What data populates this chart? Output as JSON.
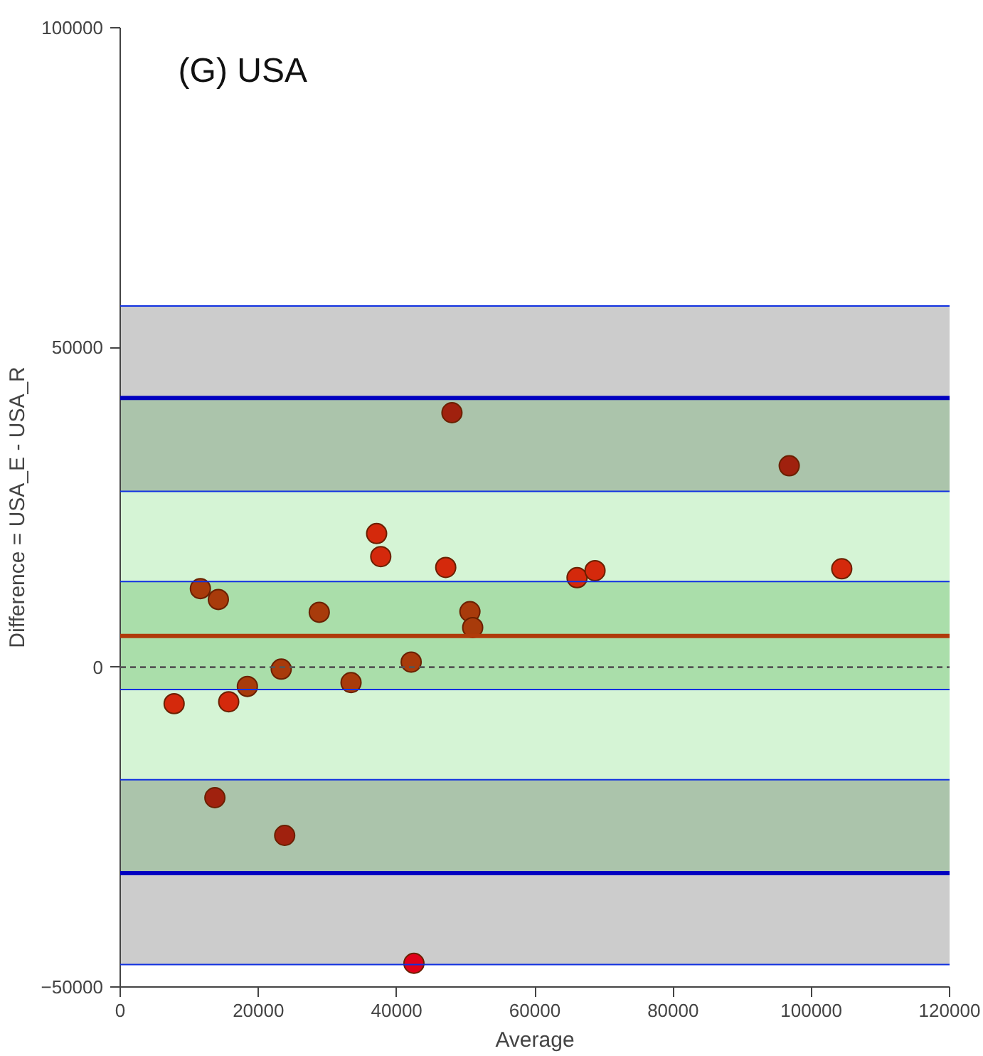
{
  "chart_data": {
    "type": "scatter",
    "title": "(G) USA",
    "xlabel": "Average",
    "ylabel": "Difference = USA_E - USA_R",
    "xlim": [
      0,
      120000
    ],
    "xticks": [
      0,
      20000,
      40000,
      60000,
      80000,
      100000,
      120000
    ],
    "ylim": [
      -50000,
      100000
    ],
    "yticks": [
      -50000,
      0,
      50000,
      100000
    ],
    "grid": false,
    "marker": "circle",
    "x": [
      48000,
      96800,
      37100,
      37700,
      47100,
      66100,
      68700,
      104400,
      11600,
      14200,
      28800,
      50600,
      51000,
      23300,
      42100,
      7800,
      15700,
      18400,
      33400,
      13700,
      23800,
      42500
    ],
    "values": [
      39800,
      31500,
      20900,
      17300,
      15600,
      14000,
      15100,
      15400,
      12300,
      10600,
      8600,
      8700,
      6200,
      -300,
      800,
      -5700,
      -5400,
      -3000,
      -2400,
      -20400,
      -26300,
      -46300
    ],
    "colors": [
      "#a0210e",
      "#a0210e",
      "#d4290c",
      "#d4290c",
      "#d4290c",
      "#d4290c",
      "#d4290c",
      "#d4290c",
      "#a83b0b",
      "#a83b0b",
      "#a83b0b",
      "#a83b0b",
      "#a83b0b",
      "#a83b0b",
      "#a83b0b",
      "#d4290c",
      "#d4290c",
      "#a83b0b",
      "#a83b0b",
      "#a0210e",
      "#a0210e",
      "#e0001a"
    ],
    "bands": [
      {
        "axis": "y",
        "from": 42100,
        "to": 56500,
        "color": "#cccccc"
      },
      {
        "axis": "y",
        "from": 27500,
        "to": 42100,
        "color": "#abc4ab"
      },
      {
        "axis": "y",
        "from": 13400,
        "to": 27500,
        "color": "#d5f4d5"
      },
      {
        "axis": "y",
        "from": -3500,
        "to": 13400,
        "color": "#aadeaa"
      },
      {
        "axis": "y",
        "from": -17600,
        "to": -3500,
        "color": "#d5f4d5"
      },
      {
        "axis": "y",
        "from": -32200,
        "to": -17600,
        "color": "#abc4ab"
      },
      {
        "axis": "y",
        "from": -46500,
        "to": -32200,
        "color": "#cccccc"
      }
    ],
    "ref_lines": [
      {
        "axis": "y",
        "value": 56500,
        "color": "#1030e0"
      },
      {
        "axis": "y",
        "value": 27500,
        "color": "#1030e0"
      },
      {
        "axis": "y",
        "value": 13400,
        "color": "#1030e0"
      },
      {
        "axis": "y",
        "value": -3500,
        "color": "#1030e0"
      },
      {
        "axis": "y",
        "value": -17600,
        "color": "#1030e0"
      },
      {
        "axis": "y",
        "value": -46500,
        "color": "#1030e0"
      },
      {
        "axis": "y",
        "value": 42100,
        "color": "#0000c0",
        "line_style": "solid"
      },
      {
        "axis": "y",
        "value": -32200,
        "color": "#0000c0",
        "line_style": "solid"
      },
      {
        "axis": "y",
        "value": 4900,
        "color": "#b03a0a",
        "line_style": "solid"
      },
      {
        "axis": "y",
        "value": 0,
        "color": "#555555",
        "line_style": "dashed"
      }
    ]
  }
}
